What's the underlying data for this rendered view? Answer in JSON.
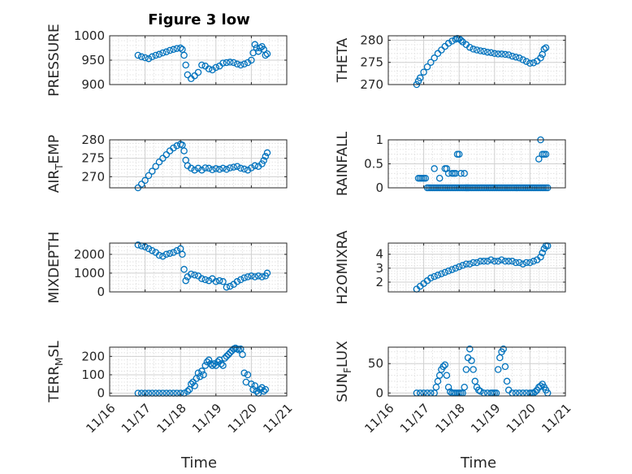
{
  "title": "Figure 3 low",
  "colors": {
    "marker": "#0072bd",
    "axis": "#262626",
    "grid": "#d0d0d0",
    "background": "#ffffff"
  },
  "x_ticks": [
    "11/16",
    "11/17",
    "11/18",
    "11/19",
    "11/20",
    "11/21"
  ],
  "x_axis_label": "Time",
  "chart_data": [
    {
      "type": "scatter",
      "ylabel": "PRESSURE",
      "xlabel": "",
      "ylim": [
        900,
        1000
      ],
      "yticks": [
        900,
        950,
        1000
      ],
      "xlim": [
        16,
        21
      ],
      "grid": true,
      "marker": "circle",
      "x": [
        16.8,
        16.9,
        17.0,
        17.1,
        17.2,
        17.3,
        17.4,
        17.5,
        17.6,
        17.7,
        17.8,
        17.9,
        18.0,
        18.05,
        18.1,
        18.15,
        18.2,
        18.3,
        18.4,
        18.5,
        18.6,
        18.7,
        18.8,
        18.9,
        19.0,
        19.1,
        19.2,
        19.3,
        19.4,
        19.5,
        19.6,
        19.7,
        19.8,
        19.9,
        20.0,
        20.05,
        20.1,
        20.15,
        20.2,
        20.25,
        20.3,
        20.35,
        20.4,
        20.45
      ],
      "y": [
        960,
        957,
        955,
        953,
        957,
        960,
        962,
        965,
        967,
        970,
        972,
        974,
        975,
        972,
        960,
        940,
        920,
        912,
        918,
        925,
        940,
        938,
        932,
        930,
        935,
        938,
        944,
        945,
        946,
        945,
        942,
        940,
        942,
        945,
        950,
        965,
        982,
        975,
        968,
        975,
        978,
        972,
        960,
        963
      ]
    },
    {
      "type": "scatter",
      "ylabel": "THETA",
      "xlabel": "",
      "ylim": [
        270,
        281
      ],
      "yticks": [
        270,
        275,
        280
      ],
      "xlim": [
        16,
        21
      ],
      "grid": true,
      "marker": "circle",
      "x": [
        16.8,
        16.85,
        16.9,
        17.0,
        17.1,
        17.2,
        17.3,
        17.4,
        17.5,
        17.6,
        17.7,
        17.8,
        17.9,
        17.95,
        18.0,
        18.05,
        18.1,
        18.2,
        18.3,
        18.4,
        18.5,
        18.6,
        18.7,
        18.8,
        18.9,
        19.0,
        19.1,
        19.2,
        19.3,
        19.4,
        19.5,
        19.6,
        19.7,
        19.8,
        19.9,
        20.0,
        20.1,
        20.2,
        20.3,
        20.35,
        20.4,
        20.45
      ],
      "y": [
        270,
        270.8,
        271.5,
        272.8,
        274,
        275,
        276,
        277,
        277.8,
        278.6,
        279.3,
        279.8,
        280.2,
        280.4,
        280.3,
        280,
        279.6,
        279,
        278.4,
        278,
        277.8,
        277.6,
        277.5,
        277.3,
        277.2,
        277,
        276.9,
        276.9,
        276.8,
        276.7,
        276.4,
        276.2,
        276,
        275.6,
        275.2,
        274.8,
        274.9,
        275.3,
        276,
        276.8,
        278,
        278.3
      ]
    },
    {
      "type": "scatter",
      "ylabel": "AIR_TEMP",
      "xlabel": "",
      "ylim": [
        267,
        280
      ],
      "yticks": [
        270,
        275,
        280
      ],
      "xlim": [
        16,
        21
      ],
      "grid": true,
      "marker": "circle",
      "x": [
        16.8,
        16.9,
        17.0,
        17.1,
        17.2,
        17.3,
        17.4,
        17.5,
        17.6,
        17.7,
        17.8,
        17.9,
        18.0,
        18.05,
        18.1,
        18.15,
        18.2,
        18.3,
        18.4,
        18.5,
        18.6,
        18.7,
        18.8,
        18.9,
        19.0,
        19.1,
        19.2,
        19.3,
        19.4,
        19.5,
        19.6,
        19.7,
        19.8,
        19.9,
        20.0,
        20.1,
        20.2,
        20.3,
        20.35,
        20.4,
        20.45
      ],
      "y": [
        267,
        268,
        269,
        270.3,
        271.5,
        272.8,
        274,
        275,
        276,
        277,
        277.8,
        278.4,
        278.8,
        278.6,
        277,
        274.5,
        273,
        272.3,
        271.8,
        272.3,
        271.8,
        272.4,
        272.3,
        271.9,
        272.2,
        272,
        272.3,
        272,
        272.4,
        272.6,
        272.8,
        272.3,
        272.1,
        271.8,
        272.4,
        273,
        272.8,
        273.5,
        274.4,
        275.5,
        276.5
      ]
    },
    {
      "type": "scatter",
      "ylabel": "RAINFALL",
      "xlabel": "",
      "ylim": [
        0,
        1
      ],
      "yticks": [
        0,
        0.5,
        1
      ],
      "xlim": [
        16,
        21
      ],
      "grid": true,
      "marker": "circle",
      "x": [
        16.85,
        16.9,
        16.95,
        17.0,
        17.05,
        17.1,
        17.15,
        17.2,
        17.25,
        17.3,
        17.35,
        17.4,
        17.45,
        17.5,
        17.55,
        17.6,
        17.65,
        17.7,
        17.75,
        17.8,
        17.85,
        17.9,
        17.95,
        18.0,
        18.05,
        18.1,
        18.15,
        18.2,
        18.25,
        18.3,
        18.35,
        18.4,
        18.45,
        18.5,
        18.55,
        18.6,
        18.65,
        18.7,
        18.75,
        18.8,
        18.85,
        18.9,
        18.95,
        19.0,
        19.05,
        19.1,
        19.15,
        19.2,
        19.25,
        19.3,
        19.35,
        19.4,
        19.45,
        19.5,
        19.55,
        19.6,
        19.65,
        19.7,
        19.75,
        19.8,
        19.85,
        19.9,
        19.95,
        20.0,
        20.05,
        20.1,
        20.15,
        20.2,
        20.25,
        20.3,
        20.35,
        20.4,
        20.45,
        20.5,
        17.3,
        17.45,
        17.6,
        17.65,
        17.7,
        17.8,
        17.85,
        17.9,
        17.95,
        18.0,
        18.05,
        18.15,
        18.2,
        18.25,
        20.25,
        20.3,
        20.35,
        20.4,
        20.45
      ],
      "y": [
        0.2,
        0.2,
        0.2,
        0.2,
        0.2,
        0,
        0,
        0,
        0,
        0,
        0,
        0,
        0,
        0,
        0,
        0,
        0,
        0,
        0,
        0,
        0,
        0,
        0,
        0,
        0,
        0,
        0,
        0,
        0,
        0,
        0,
        0,
        0,
        0,
        0,
        0,
        0,
        0,
        0,
        0,
        0,
        0,
        0,
        0,
        0,
        0,
        0,
        0,
        0,
        0,
        0,
        0,
        0,
        0,
        0,
        0,
        0,
        0,
        0,
        0,
        0,
        0,
        0,
        0,
        0,
        0,
        0,
        0,
        0,
        0,
        0,
        0,
        0,
        0,
        0.4,
        0.2,
        0.4,
        0.4,
        0.3,
        0.3,
        0.3,
        0.3,
        0.7,
        0.7,
        0.3,
        0.3,
        0,
        0,
        0.6,
        1.0,
        0.7,
        0.7,
        0.7
      ]
    },
    {
      "type": "scatter",
      "ylabel": "MIXDEPTH",
      "xlabel": "",
      "ylim": [
        0,
        2600
      ],
      "yticks": [
        0,
        1000,
        2000
      ],
      "xlim": [
        16,
        21
      ],
      "grid": true,
      "marker": "circle",
      "x": [
        16.8,
        16.9,
        17.0,
        17.1,
        17.2,
        17.3,
        17.4,
        17.5,
        17.6,
        17.7,
        17.8,
        17.9,
        18.0,
        18.05,
        18.1,
        18.15,
        18.2,
        18.3,
        18.4,
        18.5,
        18.6,
        18.7,
        18.8,
        18.9,
        19.0,
        19.1,
        19.2,
        19.3,
        19.4,
        19.5,
        19.6,
        19.7,
        19.8,
        19.9,
        20.0,
        20.1,
        20.2,
        20.3,
        20.4,
        20.45
      ],
      "y": [
        2500,
        2450,
        2400,
        2300,
        2200,
        2100,
        1950,
        1900,
        2000,
        2050,
        2100,
        2200,
        2300,
        2000,
        1200,
        600,
        800,
        950,
        900,
        850,
        700,
        650,
        600,
        700,
        550,
        600,
        550,
        250,
        300,
        400,
        550,
        650,
        750,
        800,
        850,
        800,
        850,
        800,
        850,
        1000
      ]
    },
    {
      "type": "scatter",
      "ylabel": "H2OMIXRA",
      "xlabel": "",
      "ylim": [
        1.3,
        4.8
      ],
      "yticks": [
        2,
        3,
        4
      ],
      "xlim": [
        16,
        21
      ],
      "grid": true,
      "marker": "circle",
      "x": [
        16.8,
        16.9,
        17.0,
        17.1,
        17.2,
        17.3,
        17.4,
        17.5,
        17.6,
        17.7,
        17.8,
        17.9,
        18.0,
        18.1,
        18.2,
        18.3,
        18.4,
        18.5,
        18.6,
        18.7,
        18.8,
        18.9,
        19.0,
        19.1,
        19.2,
        19.3,
        19.4,
        19.5,
        19.6,
        19.7,
        19.8,
        19.9,
        20.0,
        20.1,
        20.2,
        20.3,
        20.35,
        20.4,
        20.45,
        20.5
      ],
      "y": [
        1.5,
        1.7,
        1.9,
        2.1,
        2.3,
        2.4,
        2.5,
        2.6,
        2.7,
        2.8,
        2.9,
        3.0,
        3.1,
        3.2,
        3.3,
        3.3,
        3.4,
        3.4,
        3.5,
        3.5,
        3.5,
        3.6,
        3.5,
        3.5,
        3.6,
        3.5,
        3.5,
        3.5,
        3.4,
        3.4,
        3.3,
        3.4,
        3.4,
        3.5,
        3.6,
        3.8,
        4.1,
        4.4,
        4.6,
        4.6
      ]
    },
    {
      "type": "scatter",
      "ylabel": "TERR_MSL",
      "xlabel": "Time",
      "ylim": [
        -15,
        250
      ],
      "yticks": [
        0,
        100,
        200
      ],
      "xlim": [
        16,
        21
      ],
      "grid": true,
      "marker": "circle",
      "x": [
        16.8,
        16.9,
        17.0,
        17.1,
        17.2,
        17.3,
        17.4,
        17.5,
        17.6,
        17.7,
        17.8,
        17.9,
        18.0,
        18.1,
        18.2,
        18.25,
        18.3,
        18.35,
        18.4,
        18.45,
        18.5,
        18.55,
        18.6,
        18.65,
        18.7,
        18.75,
        18.8,
        18.85,
        18.9,
        18.95,
        19.0,
        19.05,
        19.1,
        19.15,
        19.2,
        19.25,
        19.3,
        19.35,
        19.4,
        19.45,
        19.5,
        19.55,
        19.6,
        19.65,
        19.7,
        19.75,
        19.8,
        19.85,
        19.9,
        20.0,
        20.05,
        20.1,
        20.15,
        20.2,
        20.25,
        20.3,
        20.35,
        20.4
      ],
      "y": [
        0,
        0,
        0,
        0,
        0,
        0,
        0,
        0,
        0,
        0,
        0,
        0,
        0,
        0,
        10,
        20,
        50,
        60,
        40,
        80,
        110,
        90,
        120,
        100,
        150,
        170,
        180,
        160,
        150,
        160,
        150,
        170,
        180,
        160,
        150,
        190,
        200,
        210,
        220,
        230,
        240,
        245,
        240,
        235,
        240,
        210,
        110,
        60,
        100,
        50,
        20,
        40,
        10,
        0,
        20,
        30,
        10,
        20
      ]
    },
    {
      "type": "scatter",
      "ylabel": "SUN_FLUX",
      "xlabel": "Time",
      "ylim": [
        -5,
        78
      ],
      "yticks": [
        0,
        50
      ],
      "xlim": [
        16,
        21
      ],
      "grid": true,
      "marker": "circle",
      "x": [
        16.8,
        16.9,
        17.0,
        17.1,
        17.2,
        17.3,
        17.35,
        17.4,
        17.45,
        17.5,
        17.55,
        17.6,
        17.65,
        17.7,
        17.75,
        17.8,
        17.85,
        17.9,
        17.95,
        18.0,
        18.05,
        18.1,
        18.15,
        18.2,
        18.25,
        18.3,
        18.35,
        18.4,
        18.45,
        18.5,
        18.55,
        18.6,
        18.7,
        18.8,
        18.9,
        18.95,
        19.0,
        19.05,
        19.1,
        19.15,
        19.2,
        19.25,
        19.3,
        19.35,
        19.4,
        19.5,
        19.6,
        19.7,
        19.8,
        19.9,
        20.0,
        20.05,
        20.1,
        20.15,
        20.2,
        20.25,
        20.3,
        20.35,
        20.4,
        20.45,
        20.5
      ],
      "y": [
        0,
        0,
        0,
        0,
        0,
        0,
        10,
        20,
        30,
        40,
        45,
        48,
        30,
        10,
        2,
        0,
        0,
        0,
        0,
        0,
        0,
        0,
        10,
        40,
        60,
        75,
        55,
        40,
        20,
        10,
        5,
        3,
        0,
        0,
        0,
        0,
        0,
        0,
        40,
        60,
        70,
        75,
        45,
        20,
        5,
        0,
        0,
        0,
        0,
        0,
        0,
        0,
        0,
        2,
        5,
        10,
        12,
        15,
        10,
        5,
        0
      ]
    }
  ]
}
